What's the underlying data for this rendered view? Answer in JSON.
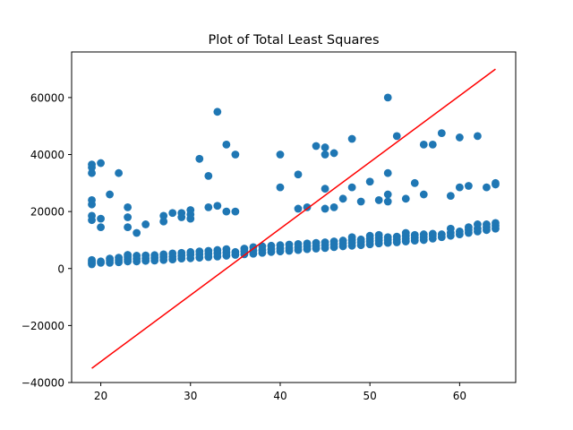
{
  "chart_data": {
    "type": "scatter",
    "title": "Plot of Total Least Squares",
    "xlabel": "",
    "ylabel": "",
    "xlim": [
      16.75,
      66.25
    ],
    "ylim": [
      -40000,
      76000
    ],
    "xticks": [
      20,
      30,
      40,
      50,
      60
    ],
    "yticks": [
      -40000,
      -20000,
      0,
      20000,
      40000,
      60000
    ],
    "grid": false,
    "point_color": "#1f77b4",
    "line_color": "#ff0000",
    "line": {
      "x": [
        19,
        64
      ],
      "y": [
        -35000,
        70000
      ]
    },
    "points": [
      [
        19,
        1500
      ],
      [
        19,
        2000
      ],
      [
        19,
        2500
      ],
      [
        19,
        3000
      ],
      [
        19,
        17000
      ],
      [
        19,
        18500
      ],
      [
        19,
        22500
      ],
      [
        19,
        24000
      ],
      [
        19,
        33500
      ],
      [
        19,
        35500
      ],
      [
        19,
        36500
      ],
      [
        20,
        2000
      ],
      [
        20,
        2500
      ],
      [
        20,
        14500
      ],
      [
        20,
        17500
      ],
      [
        20,
        37000
      ],
      [
        21,
        2000
      ],
      [
        21,
        2800
      ],
      [
        21,
        3500
      ],
      [
        21,
        26000
      ],
      [
        22,
        2200
      ],
      [
        22,
        3000
      ],
      [
        22,
        3800
      ],
      [
        22,
        33500
      ],
      [
        23,
        2500
      ],
      [
        23,
        3200
      ],
      [
        23,
        4000
      ],
      [
        23,
        4800
      ],
      [
        23,
        14500
      ],
      [
        23,
        18000
      ],
      [
        23,
        21500
      ],
      [
        24,
        2500
      ],
      [
        24,
        3400
      ],
      [
        24,
        4500
      ],
      [
        24,
        12500
      ],
      [
        25,
        2700
      ],
      [
        25,
        3600
      ],
      [
        25,
        4600
      ],
      [
        25,
        15500
      ],
      [
        26,
        2800
      ],
      [
        26,
        3700
      ],
      [
        26,
        4700
      ],
      [
        27,
        3000
      ],
      [
        27,
        4000
      ],
      [
        27,
        5000
      ],
      [
        27,
        16500
      ],
      [
        27,
        18500
      ],
      [
        28,
        3200
      ],
      [
        28,
        4200
      ],
      [
        28,
        5300
      ],
      [
        28,
        19500
      ],
      [
        29,
        3500
      ],
      [
        29,
        4500
      ],
      [
        29,
        5500
      ],
      [
        29,
        18000
      ],
      [
        29,
        19500
      ],
      [
        30,
        3600
      ],
      [
        30,
        4800
      ],
      [
        30,
        5800
      ],
      [
        30,
        17500
      ],
      [
        30,
        19000
      ],
      [
        30,
        20500
      ],
      [
        31,
        3800
      ],
      [
        31,
        5000
      ],
      [
        31,
        6000
      ],
      [
        31,
        38500
      ],
      [
        32,
        4000
      ],
      [
        32,
        5200
      ],
      [
        32,
        6200
      ],
      [
        32,
        21500
      ],
      [
        32,
        32500
      ],
      [
        33,
        4200
      ],
      [
        33,
        5400
      ],
      [
        33,
        6500
      ],
      [
        33,
        22000
      ],
      [
        33,
        55000
      ],
      [
        34,
        4500
      ],
      [
        34,
        5600
      ],
      [
        34,
        6800
      ],
      [
        34,
        20000
      ],
      [
        34,
        43500
      ],
      [
        35,
        4800
      ],
      [
        35,
        5800
      ],
      [
        35,
        20000
      ],
      [
        35,
        40000
      ],
      [
        36,
        5000
      ],
      [
        36,
        6000
      ],
      [
        36,
        7000
      ],
      [
        37,
        5200
      ],
      [
        37,
        6200
      ],
      [
        37,
        7500
      ],
      [
        38,
        5500
      ],
      [
        38,
        6500
      ],
      [
        38,
        7800
      ],
      [
        39,
        5800
      ],
      [
        39,
        6800
      ],
      [
        39,
        8000
      ],
      [
        40,
        6000
      ],
      [
        40,
        7000
      ],
      [
        40,
        8200
      ],
      [
        40,
        28500
      ],
      [
        40,
        40000
      ],
      [
        41,
        6200
      ],
      [
        41,
        7200
      ],
      [
        41,
        8400
      ],
      [
        42,
        6500
      ],
      [
        42,
        7500
      ],
      [
        42,
        8600
      ],
      [
        42,
        21000
      ],
      [
        42,
        33000
      ],
      [
        43,
        6800
      ],
      [
        43,
        7800
      ],
      [
        43,
        8800
      ],
      [
        43,
        21500
      ],
      [
        44,
        7000
      ],
      [
        44,
        8000
      ],
      [
        44,
        9000
      ],
      [
        44,
        43000
      ],
      [
        45,
        7200
      ],
      [
        45,
        8200
      ],
      [
        45,
        9200
      ],
      [
        45,
        21000
      ],
      [
        45,
        28000
      ],
      [
        45,
        40000
      ],
      [
        45,
        42500
      ],
      [
        46,
        7500
      ],
      [
        46,
        8500
      ],
      [
        46,
        9500
      ],
      [
        46,
        21500
      ],
      [
        46,
        40500
      ],
      [
        47,
        7800
      ],
      [
        47,
        8800
      ],
      [
        47,
        9800
      ],
      [
        47,
        24500
      ],
      [
        48,
        8000
      ],
      [
        48,
        9000
      ],
      [
        48,
        10000
      ],
      [
        48,
        11000
      ],
      [
        48,
        28500
      ],
      [
        48,
        45500
      ],
      [
        49,
        8200
      ],
      [
        49,
        9200
      ],
      [
        49,
        10200
      ],
      [
        49,
        23500
      ],
      [
        50,
        8500
      ],
      [
        50,
        9500
      ],
      [
        50,
        10500
      ],
      [
        50,
        11500
      ],
      [
        50,
        30500
      ],
      [
        51,
        8800
      ],
      [
        51,
        9800
      ],
      [
        51,
        10800
      ],
      [
        51,
        11800
      ],
      [
        51,
        24000
      ],
      [
        52,
        9000
      ],
      [
        52,
        10000
      ],
      [
        52,
        11000
      ],
      [
        52,
        23500
      ],
      [
        52,
        26000
      ],
      [
        52,
        33500
      ],
      [
        52,
        60000
      ],
      [
        53,
        9200
      ],
      [
        53,
        10200
      ],
      [
        53,
        11200
      ],
      [
        53,
        46500
      ],
      [
        54,
        9500
      ],
      [
        54,
        10500
      ],
      [
        54,
        11500
      ],
      [
        54,
        12500
      ],
      [
        54,
        24500
      ],
      [
        55,
        9800
      ],
      [
        55,
        10800
      ],
      [
        55,
        11800
      ],
      [
        55,
        30000
      ],
      [
        56,
        10000
      ],
      [
        56,
        11000
      ],
      [
        56,
        12000
      ],
      [
        56,
        26000
      ],
      [
        56,
        43500
      ],
      [
        57,
        10500
      ],
      [
        57,
        11500
      ],
      [
        57,
        12200
      ],
      [
        57,
        43500
      ],
      [
        58,
        11000
      ],
      [
        58,
        12000
      ],
      [
        58,
        47500
      ],
      [
        59,
        11500
      ],
      [
        59,
        12500
      ],
      [
        59,
        14000
      ],
      [
        59,
        25500
      ],
      [
        60,
        12000
      ],
      [
        60,
        13000
      ],
      [
        60,
        28500
      ],
      [
        60,
        46000
      ],
      [
        61,
        12500
      ],
      [
        61,
        13500
      ],
      [
        61,
        14500
      ],
      [
        61,
        29000
      ],
      [
        62,
        13000
      ],
      [
        62,
        14000
      ],
      [
        62,
        15500
      ],
      [
        62,
        46500
      ],
      [
        63,
        13500
      ],
      [
        63,
        14500
      ],
      [
        63,
        15500
      ],
      [
        63,
        28500
      ],
      [
        64,
        14000
      ],
      [
        64,
        15000
      ],
      [
        64,
        16000
      ],
      [
        64,
        29500
      ],
      [
        64,
        30000
      ]
    ]
  }
}
